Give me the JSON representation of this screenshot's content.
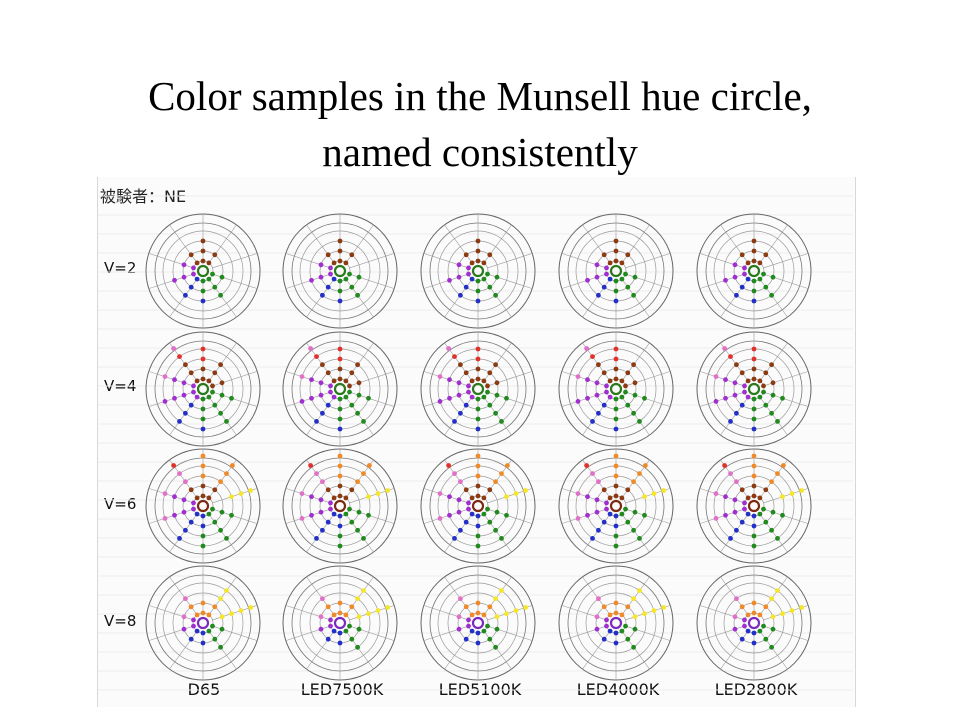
{
  "title_line1": "Color samples in the Munsell hue circle,",
  "title_line2": "named consistently",
  "subject_label": "被験者：NE",
  "chart_data": {
    "type": "scatter",
    "subtype": "polar-hue-circle-grid",
    "rows": [
      "V=2",
      "V=4",
      "V=6",
      "V=8"
    ],
    "columns": [
      "D65",
      "LED7500K",
      "LED5100K",
      "LED4000K",
      "LED2800K"
    ],
    "rings": 4,
    "spokes": 10,
    "color_categories": {
      "red": "#e0312b",
      "brown": "#8b3a12",
      "orange": "#f08a28",
      "yellow": "#f5e62a",
      "green": "#218a1e",
      "blue": "#2330c8",
      "purple": "#a12fd0",
      "pink": "#e070c8"
    },
    "panels": {
      "V=2": {
        "brown": [
          [
            0,
            1
          ],
          [
            0,
            2
          ],
          [
            0,
            3
          ],
          [
            1,
            1
          ],
          [
            1,
            2
          ],
          [
            9,
            1
          ],
          [
            9,
            2
          ]
        ],
        "green": [
          [
            3,
            1
          ],
          [
            4,
            1
          ],
          [
            4,
            2
          ],
          [
            5,
            1
          ],
          [
            5,
            2
          ],
          [
            3,
            2
          ],
          [
            4,
            3
          ]
        ],
        "blue": [
          [
            5,
            3
          ],
          [
            6,
            1
          ],
          [
            6,
            2
          ],
          [
            6,
            3
          ]
        ],
        "purple": [
          [
            7,
            1
          ],
          [
            7,
            2
          ],
          [
            7,
            3
          ],
          [
            8,
            1
          ],
          [
            8,
            2
          ]
        ]
      },
      "V=4": {
        "red": [
          [
            0,
            3
          ],
          [
            0,
            4
          ],
          [
            9,
            4
          ]
        ],
        "brown": [
          [
            0,
            1
          ],
          [
            0,
            2
          ],
          [
            1,
            1
          ],
          [
            1,
            2
          ],
          [
            1,
            3
          ],
          [
            2,
            1
          ],
          [
            2,
            2
          ],
          [
            9,
            1
          ],
          [
            9,
            2
          ],
          [
            9,
            3
          ]
        ],
        "green": [
          [
            3,
            1
          ],
          [
            3,
            2
          ],
          [
            3,
            3
          ],
          [
            4,
            1
          ],
          [
            4,
            2
          ],
          [
            4,
            3
          ],
          [
            4,
            4
          ],
          [
            5,
            1
          ],
          [
            5,
            2
          ],
          [
            5,
            3
          ]
        ],
        "blue": [
          [
            5,
            4
          ],
          [
            6,
            2
          ],
          [
            6,
            3
          ],
          [
            6,
            4
          ]
        ],
        "purple": [
          [
            6,
            1
          ],
          [
            7,
            1
          ],
          [
            7,
            2
          ],
          [
            7,
            3
          ],
          [
            7,
            4
          ],
          [
            8,
            1
          ],
          [
            8,
            2
          ],
          [
            8,
            3
          ]
        ],
        "pink": [
          [
            8,
            4
          ],
          [
            9,
            5
          ]
        ]
      },
      "V=6": {
        "orange": [
          [
            0,
            3
          ],
          [
            0,
            4
          ],
          [
            1,
            3
          ],
          [
            1,
            4
          ],
          [
            1,
            5
          ],
          [
            0,
            5
          ]
        ],
        "yellow": [
          [
            2,
            3
          ],
          [
            2,
            4
          ],
          [
            2,
            5
          ]
        ],
        "brown": [
          [
            0,
            1
          ],
          [
            0,
            2
          ],
          [
            1,
            1
          ],
          [
            1,
            2
          ],
          [
            9,
            1
          ],
          [
            9,
            2
          ]
        ],
        "green": [
          [
            3,
            1
          ],
          [
            3,
            2
          ],
          [
            3,
            3
          ],
          [
            4,
            1
          ],
          [
            4,
            2
          ],
          [
            4,
            3
          ],
          [
            4,
            4
          ],
          [
            5,
            3
          ],
          [
            5,
            4
          ]
        ],
        "blue": [
          [
            5,
            1
          ],
          [
            5,
            2
          ],
          [
            6,
            1
          ],
          [
            6,
            2
          ],
          [
            6,
            3
          ],
          [
            6,
            4
          ]
        ],
        "purple": [
          [
            7,
            1
          ],
          [
            7,
            2
          ],
          [
            7,
            3
          ],
          [
            8,
            1
          ],
          [
            8,
            2
          ],
          [
            8,
            3
          ]
        ],
        "pink": [
          [
            9,
            3
          ],
          [
            9,
            4
          ],
          [
            8,
            4
          ],
          [
            7,
            4
          ]
        ],
        "red": [
          [
            9,
            5
          ]
        ]
      },
      "V=8": {
        "orange": [
          [
            0,
            1
          ],
          [
            0,
            2
          ],
          [
            1,
            1
          ],
          [
            1,
            2
          ],
          [
            9,
            1
          ],
          [
            9,
            2
          ]
        ],
        "yellow": [
          [
            1,
            3
          ],
          [
            1,
            4
          ],
          [
            2,
            2
          ],
          [
            2,
            3
          ],
          [
            2,
            4
          ],
          [
            2,
            5
          ]
        ],
        "green": [
          [
            3,
            1
          ],
          [
            3,
            2
          ],
          [
            4,
            1
          ],
          [
            4,
            2
          ],
          [
            4,
            3
          ]
        ],
        "blue": [
          [
            5,
            1
          ],
          [
            5,
            2
          ],
          [
            6,
            1
          ],
          [
            6,
            2
          ]
        ],
        "purple": [
          [
            7,
            1
          ],
          [
            7,
            2
          ],
          [
            8,
            1
          ]
        ],
        "pink": [
          [
            8,
            2
          ],
          [
            9,
            3
          ]
        ]
      }
    }
  }
}
